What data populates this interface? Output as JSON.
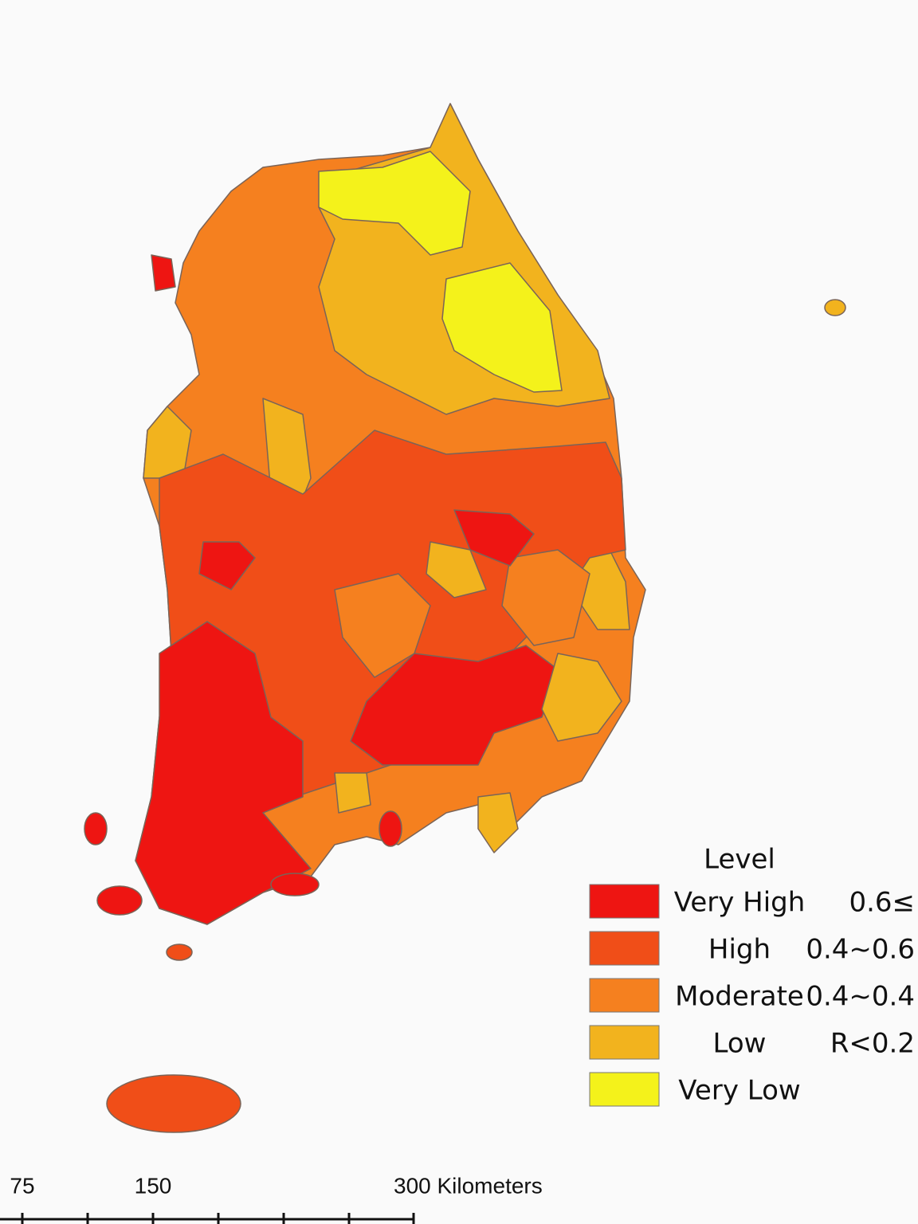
{
  "legend": {
    "title": "Level",
    "items": [
      {
        "label": "Very High",
        "range": "0.6≤",
        "color": "#ee1512"
      },
      {
        "label": "High",
        "range": "0.4~0.6",
        "color": "#f04e18"
      },
      {
        "label": "Moderate",
        "range": "0.4~0.4",
        "color": "#f5801f"
      },
      {
        "label": "Low",
        "range": "R<0.2",
        "color": "#f2b31e"
      },
      {
        "label": "Very Low",
        "color": "#f4f21b"
      }
    ]
  },
  "scale_bar": {
    "ticks": [
      75,
      150,
      {
        "value": 300,
        "label": "300 Kilometers"
      }
    ]
  }
}
